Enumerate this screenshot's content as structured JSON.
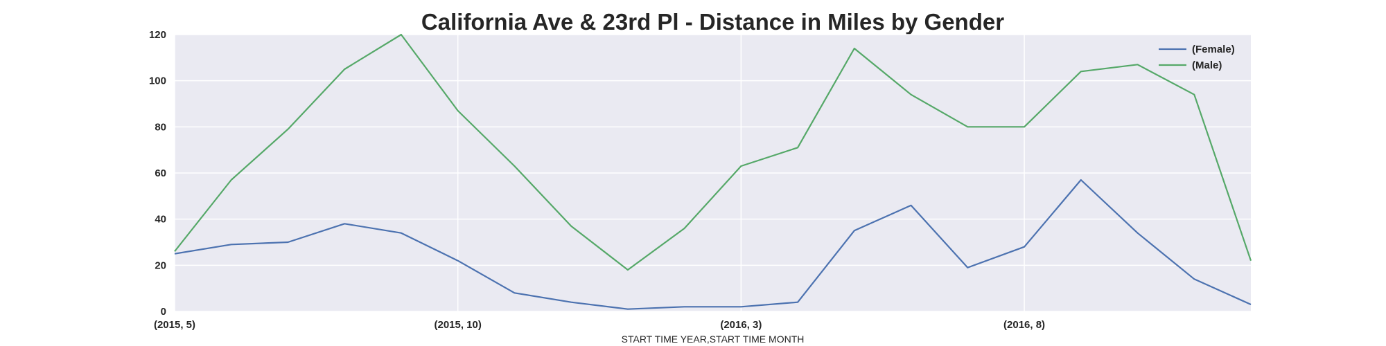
{
  "chart_data": {
    "type": "line",
    "title": "California Ave & 23rd Pl - Distance in Miles by Gender",
    "xlabel": "START TIME YEAR,START TIME MONTH",
    "ylabel": "",
    "x": [
      "(2015, 5)",
      "(2015, 6)",
      "(2015, 7)",
      "(2015, 8)",
      "(2015, 9)",
      "(2015, 10)",
      "(2015, 11)",
      "(2015, 12)",
      "(2016, 1)",
      "(2016, 2)",
      "(2016, 3)",
      "(2016, 4)",
      "(2016, 5)",
      "(2016, 6)",
      "(2016, 7)",
      "(2016, 8)",
      "(2016, 9)",
      "(2016, 10)",
      "(2016, 11)",
      "(2016, 12)"
    ],
    "x_tick_labels": [
      "(2015, 5)",
      "(2015, 10)",
      "(2016, 3)",
      "(2016, 8)"
    ],
    "y_ticks": [
      0,
      20,
      40,
      60,
      80,
      100,
      120
    ],
    "ylim": [
      0,
      120
    ],
    "grid": true,
    "legend_position": "top-right",
    "series": [
      {
        "name": "(Female)",
        "color": "#4c72b0",
        "values": [
          25,
          29,
          30,
          38,
          34,
          22,
          8,
          4,
          1,
          2,
          2,
          4,
          35,
          46,
          19,
          28,
          57,
          34,
          14,
          3
        ]
      },
      {
        "name": "(Male)",
        "color": "#55a868",
        "values": [
          26,
          57,
          79,
          105,
          120,
          87,
          63,
          37,
          18,
          36,
          63,
          71,
          114,
          94,
          80,
          80,
          104,
          107,
          94,
          22
        ]
      }
    ],
    "colors": {
      "plot_background": "#eaeaf2",
      "grid": "#ffffff",
      "text": "#262626"
    }
  }
}
